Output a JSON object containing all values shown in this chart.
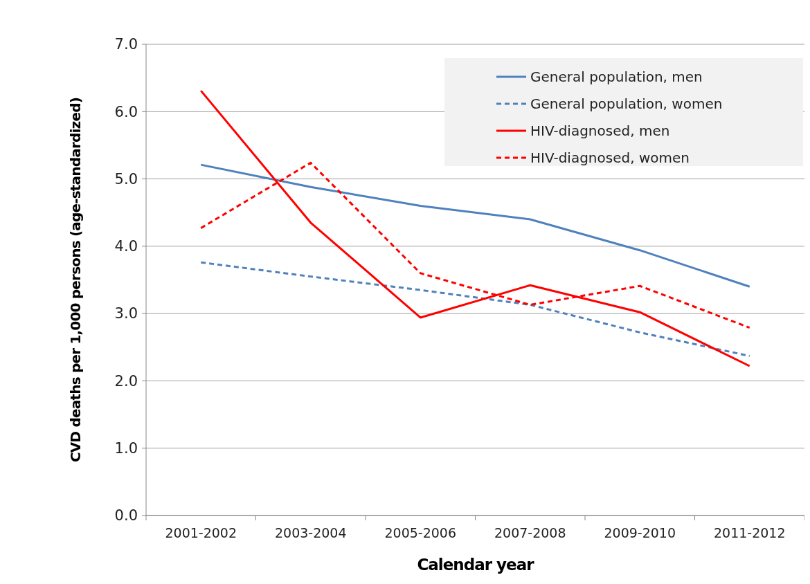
{
  "chart_data": {
    "type": "line",
    "xlabel": "Calendar year",
    "ylabel": "CVD deaths per 1,000 persons (age-standardized)",
    "categories": [
      "2001-2002",
      "2003-2004",
      "2005-2006",
      "2007-2008",
      "2009-2010",
      "2011-2012"
    ],
    "series": [
      {
        "name": "General population, men",
        "color": "#4f81bd",
        "line_style": "solid",
        "values": [
          5.21,
          4.88,
          4.6,
          4.4,
          3.94,
          3.4
        ]
      },
      {
        "name": "General population, women",
        "color": "#4f81bd",
        "line_style": "dashed",
        "values": [
          3.76,
          3.55,
          3.35,
          3.13,
          2.72,
          2.37
        ]
      },
      {
        "name": "HIV-diagnosed, men",
        "color": "#ff0000",
        "line_style": "solid",
        "values": [
          6.31,
          4.35,
          2.94,
          3.42,
          3.02,
          2.22
        ]
      },
      {
        "name": "HIV-diagnosed, women",
        "color": "#ff0000",
        "line_style": "dashed",
        "values": [
          4.27,
          5.24,
          3.6,
          3.13,
          3.41,
          2.79
        ]
      }
    ],
    "ylim": [
      0,
      7
    ],
    "yticks": [
      {
        "value": 0,
        "label": "0.0"
      },
      {
        "value": 1,
        "label": "1.0"
      },
      {
        "value": 2,
        "label": "2.0"
      },
      {
        "value": 3,
        "label": "3.0"
      },
      {
        "value": 4,
        "label": "4.0"
      },
      {
        "value": 5,
        "label": "5.0"
      },
      {
        "value": 6,
        "label": "6.0"
      },
      {
        "value": 7,
        "label": "7.0"
      }
    ],
    "grid": "y",
    "legend": "top right",
    "marker": "none"
  }
}
